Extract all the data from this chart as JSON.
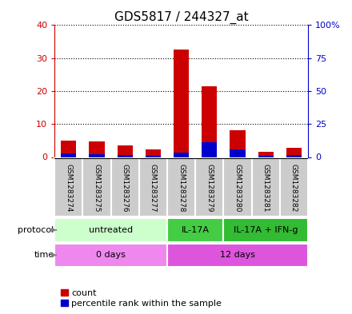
{
  "title": "GDS5817 / 244327_at",
  "samples": [
    "GSM1283274",
    "GSM1283275",
    "GSM1283276",
    "GSM1283277",
    "GSM1283278",
    "GSM1283279",
    "GSM1283280",
    "GSM1283281",
    "GSM1283282"
  ],
  "count_values": [
    5.0,
    4.8,
    3.5,
    2.2,
    32.5,
    21.5,
    8.0,
    1.5,
    2.8
  ],
  "percentile_values": [
    2.5,
    2.0,
    1.8,
    1.2,
    3.5,
    11.5,
    6.0,
    1.2,
    1.8
  ],
  "left_ylim": [
    0,
    40
  ],
  "right_ylim": [
    0,
    100
  ],
  "left_yticks": [
    0,
    10,
    20,
    30,
    40
  ],
  "right_yticks": [
    0,
    25,
    50,
    75,
    100
  ],
  "right_yticklabels": [
    "0",
    "25",
    "50",
    "75",
    "100%"
  ],
  "bar_color_count": "#cc0000",
  "bar_color_percentile": "#0000cc",
  "protocol_groups": [
    {
      "label": "untreated",
      "start": 0,
      "end": 3,
      "color": "#ccffcc"
    },
    {
      "label": "IL-17A",
      "start": 4,
      "end": 5,
      "color": "#44cc44"
    },
    {
      "label": "IL-17A + IFN-g",
      "start": 6,
      "end": 8,
      "color": "#33bb33"
    }
  ],
  "time_groups": [
    {
      "label": "0 days",
      "start": 0,
      "end": 3,
      "color": "#ee88ee"
    },
    {
      "label": "12 days",
      "start": 4,
      "end": 8,
      "color": "#dd55dd"
    }
  ],
  "background_color": "#ffffff",
  "sample_box_color": "#cccccc",
  "legend_count_label": "count",
  "legend_percentile_label": "percentile rank within the sample",
  "title_fontsize": 11,
  "tick_label_fontsize": 8,
  "sample_fontsize": 6.5,
  "row_fontsize": 8,
  "legend_fontsize": 8
}
